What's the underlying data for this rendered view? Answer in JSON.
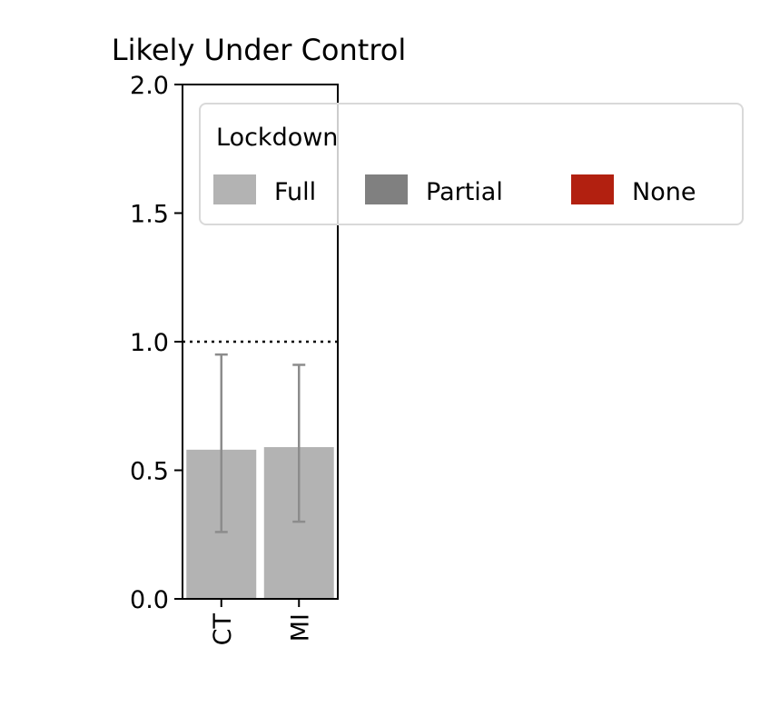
{
  "chart_data": {
    "type": "bar",
    "title": "Likely Under Control",
    "xlabel": "",
    "ylabel": "",
    "categories": [
      "CT",
      "MI"
    ],
    "series": [
      {
        "name": "Full",
        "values": [
          0.58,
          0.59
        ],
        "err_low": [
          0.26,
          0.3
        ],
        "err_high": [
          0.95,
          0.91
        ]
      }
    ],
    "ylim": [
      0.0,
      2.0
    ],
    "yticks": [
      "0.0",
      "0.5",
      "1.0",
      "1.5",
      "2.0"
    ],
    "reference_line": {
      "y": 1.0,
      "style": "dotted"
    },
    "grid": false,
    "legend": {
      "title": "Lockdown",
      "placement": "upper-right, outside axes",
      "entries": [
        {
          "label": "Full",
          "color": "#b3b3b3"
        },
        {
          "label": "Partial",
          "color": "#808080"
        },
        {
          "label": "None",
          "color": "#b22010"
        }
      ]
    },
    "colors": {
      "bar": "#b3b3b3",
      "errorbar": "#8c8c8c",
      "axis": "#000000"
    }
  }
}
